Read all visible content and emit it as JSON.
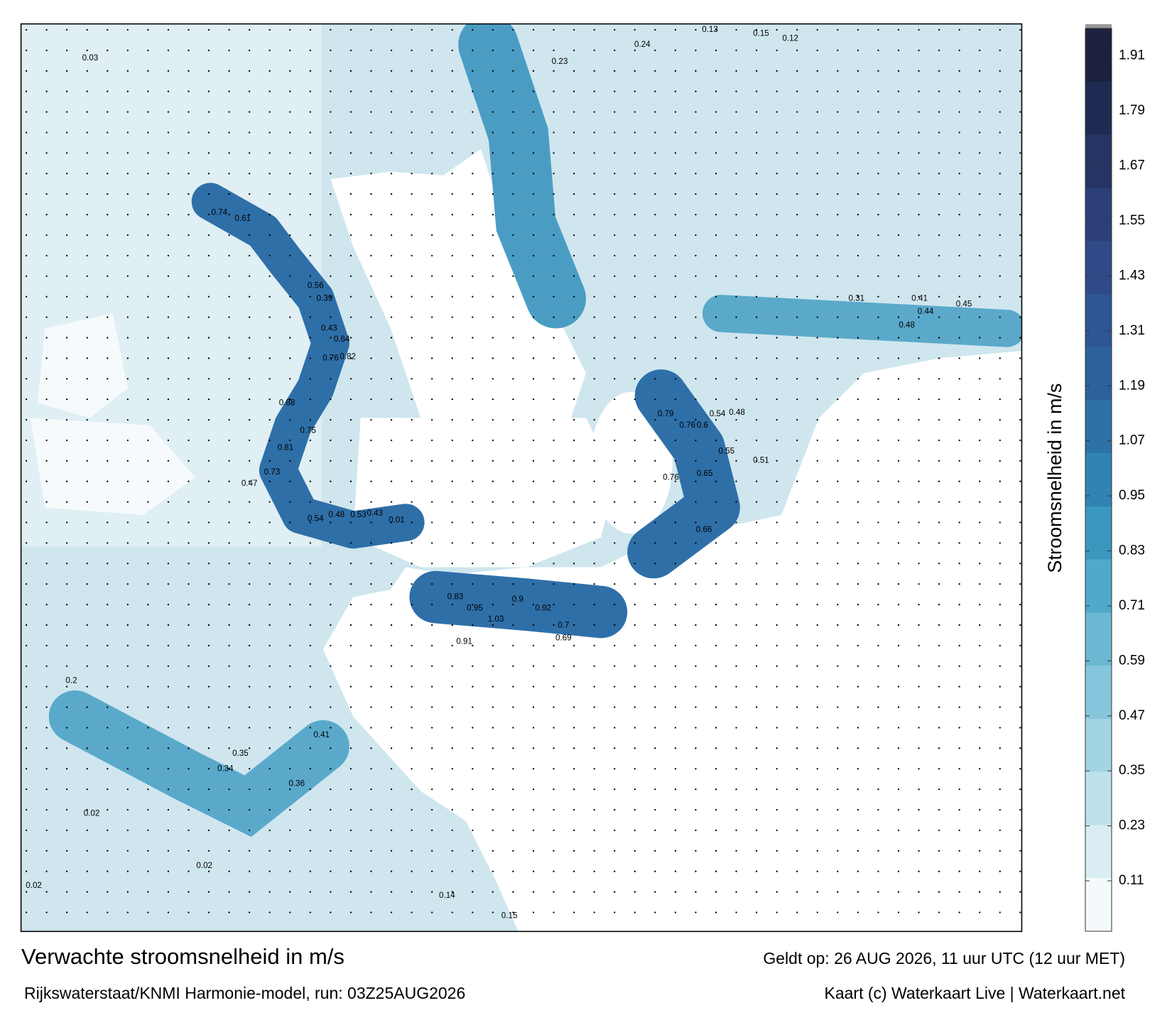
{
  "title": "Verwachte stroomsnelheid in m/s",
  "valid_time": "Geldt op: 26 AUG 2026, 11 uur UTC (12 uur MET)",
  "model_run": "Rijkswaterstaat/KNMI Harmonie-model, run: 03Z25AUG2026",
  "credit": "Kaart (c) Waterkaart Live | Waterkaart.net",
  "colorbar": {
    "label": "Stroomsnelheid in m/s",
    "lim": [
      0,
      1.97
    ],
    "ticks": [
      0.11,
      0.23,
      0.35,
      0.47,
      0.59,
      0.71,
      0.83,
      0.95,
      1.07,
      1.19,
      1.31,
      1.43,
      1.55,
      1.67,
      1.79,
      1.91
    ],
    "colors": [
      "#f4f9fb",
      "#d9edf3",
      "#bfe1ec",
      "#a3d4e4",
      "#86c6dc",
      "#6ab8d2",
      "#4fa9c8",
      "#3a97be",
      "#2f84b3",
      "#2c72a8",
      "#2b629d",
      "#2e5594",
      "#2f4a86",
      "#2c3f76",
      "#263464",
      "#1e2a52",
      "#1b213f"
    ]
  },
  "map_labels": [
    0.74,
    0.61,
    0.56,
    0.39,
    0.43,
    0.64,
    0.76,
    0.82,
    0.88,
    0.81,
    0.75,
    0.73,
    0.47,
    0.54,
    0.48,
    0.53,
    0.43,
    0.01,
    0.83,
    0.95,
    1.03,
    0.9,
    0.92,
    0.7,
    0.69,
    0.91,
    0.79,
    0.76,
    0.6,
    0.54,
    0.48,
    0.55,
    0.51,
    0.76,
    0.65,
    0.66,
    0.31,
    0.41,
    0.44,
    0.45,
    0.48,
    0.23,
    0.24,
    0.13,
    0.15,
    0.12,
    0.03,
    0.02,
    0.02,
    0.02,
    0.2,
    0.34,
    0.35,
    0.36,
    0.41,
    0.14,
    0.15
  ]
}
